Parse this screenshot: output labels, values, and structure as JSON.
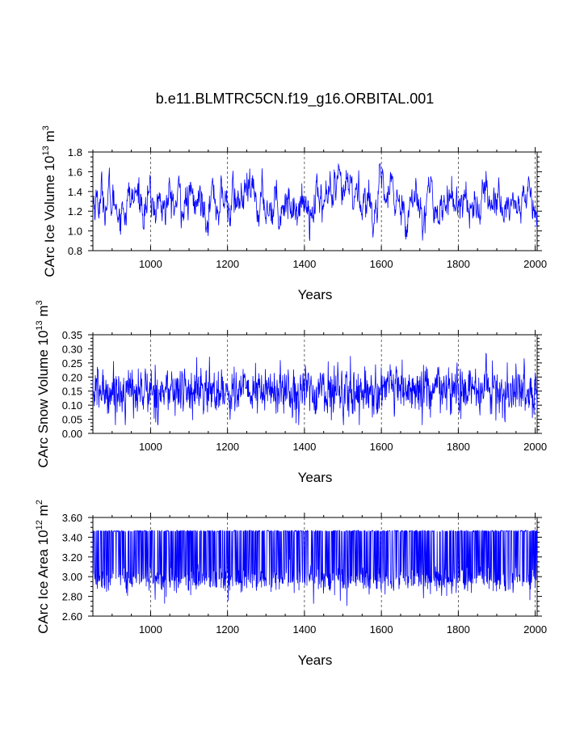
{
  "title": "b.e11.BLMTRC5CN.f19_g16.ORBITAL.001",
  "colors": {
    "series": "#0000ff",
    "axes": "#000000"
  },
  "chart_data": [
    {
      "type": "line",
      "id": "ice-volume",
      "title": "",
      "xlabel": "Years",
      "ylabel_main": "CArc Ice Volume 10",
      "ylabel_exp": "13",
      "ylabel_unit": " m",
      "ylabel_unit_exp": "3",
      "xlim": [
        850,
        2005
      ],
      "ylim": [
        0.8,
        1.8
      ],
      "xticks": [
        1000,
        1200,
        1400,
        1600,
        1800,
        2000
      ],
      "xtick_labels": [
        "1000",
        "1200",
        "1400",
        "1600",
        "1800",
        "2000"
      ],
      "yticks": [
        0.8,
        1.0,
        1.2,
        1.4,
        1.6,
        1.8
      ],
      "ytick_labels": [
        "0.8",
        "1.0",
        "1.2",
        "1.4",
        "1.6",
        "1.8"
      ],
      "grid": "vertical-dashed",
      "series": [
        {
          "name": "CArc Ice Volume",
          "summary": {
            "mean": 1.3,
            "noise_sd": 0.1,
            "min": 0.83,
            "max": 1.68
          }
        }
      ]
    },
    {
      "type": "line",
      "id": "snow-volume",
      "title": "",
      "xlabel": "Years",
      "ylabel_main": "CArc Snow Volume 10",
      "ylabel_exp": "13",
      "ylabel_unit": " m",
      "ylabel_unit_exp": "3",
      "xlim": [
        850,
        2005
      ],
      "ylim": [
        0.0,
        0.35
      ],
      "xticks": [
        1000,
        1200,
        1400,
        1600,
        1800,
        2000
      ],
      "xtick_labels": [
        "1000",
        "1200",
        "1400",
        "1600",
        "1800",
        "2000"
      ],
      "yticks": [
        0.0,
        0.05,
        0.1,
        0.15,
        0.2,
        0.25,
        0.3,
        0.35
      ],
      "ytick_labels": [
        "0.00",
        "0.05",
        "0.10",
        "0.15",
        "0.20",
        "0.25",
        "0.30",
        "0.35"
      ],
      "grid": "vertical-dashed",
      "series": [
        {
          "name": "CArc Snow Volume",
          "summary": {
            "mean": 0.15,
            "noise_sd": 0.04,
            "min": 0.03,
            "max": 0.3
          }
        }
      ]
    },
    {
      "type": "line",
      "id": "ice-area",
      "title": "",
      "xlabel": "Years",
      "ylabel_main": "CArc Ice Area 10",
      "ylabel_exp": "12",
      "ylabel_unit": " m",
      "ylabel_unit_exp": "2",
      "xlim": [
        850,
        2005
      ],
      "ylim": [
        2.6,
        3.6
      ],
      "xticks": [
        1000,
        1200,
        1400,
        1600,
        1800,
        2000
      ],
      "xtick_labels": [
        "1000",
        "1200",
        "1400",
        "1600",
        "1800",
        "2000"
      ],
      "yticks": [
        2.6,
        2.8,
        3.0,
        3.2,
        3.4,
        3.6
      ],
      "ytick_labels": [
        "2.60",
        "2.80",
        "3.00",
        "3.20",
        "3.40",
        "3.60"
      ],
      "grid": "vertical-dashed",
      "series": [
        {
          "name": "CArc Ice Area",
          "summary": {
            "upper": 3.47,
            "typical_low": 2.95,
            "min": 2.69,
            "max": 3.48
          }
        }
      ]
    }
  ]
}
